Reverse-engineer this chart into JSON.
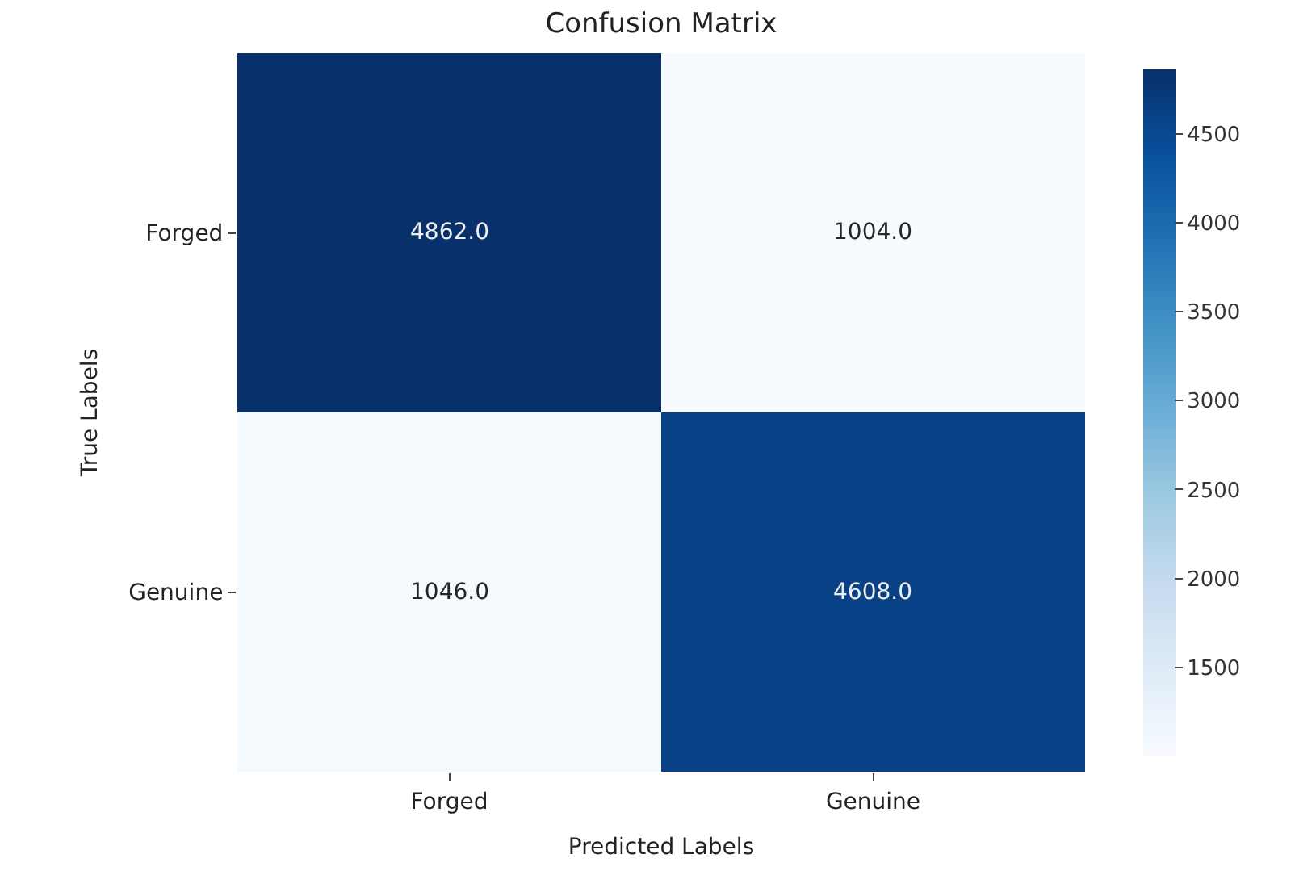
{
  "chart_data": {
    "type": "heatmap",
    "title": "Confusion Matrix",
    "xlabel": "Predicted Labels",
    "ylabel": "True Labels",
    "categories": [
      "Forged",
      "Genuine"
    ],
    "y_categories": [
      "Forged",
      "Genuine"
    ],
    "cells": [
      [
        4862,
        1004
      ],
      [
        1046,
        4608
      ]
    ],
    "cell_labels": [
      [
        "4862.0",
        "1004.0"
      ],
      [
        "1046.0",
        "4608.0"
      ]
    ],
    "clim": [
      1004,
      4862
    ],
    "cticks": [
      1500,
      2000,
      2500,
      3000,
      3500,
      4000,
      4500
    ]
  }
}
